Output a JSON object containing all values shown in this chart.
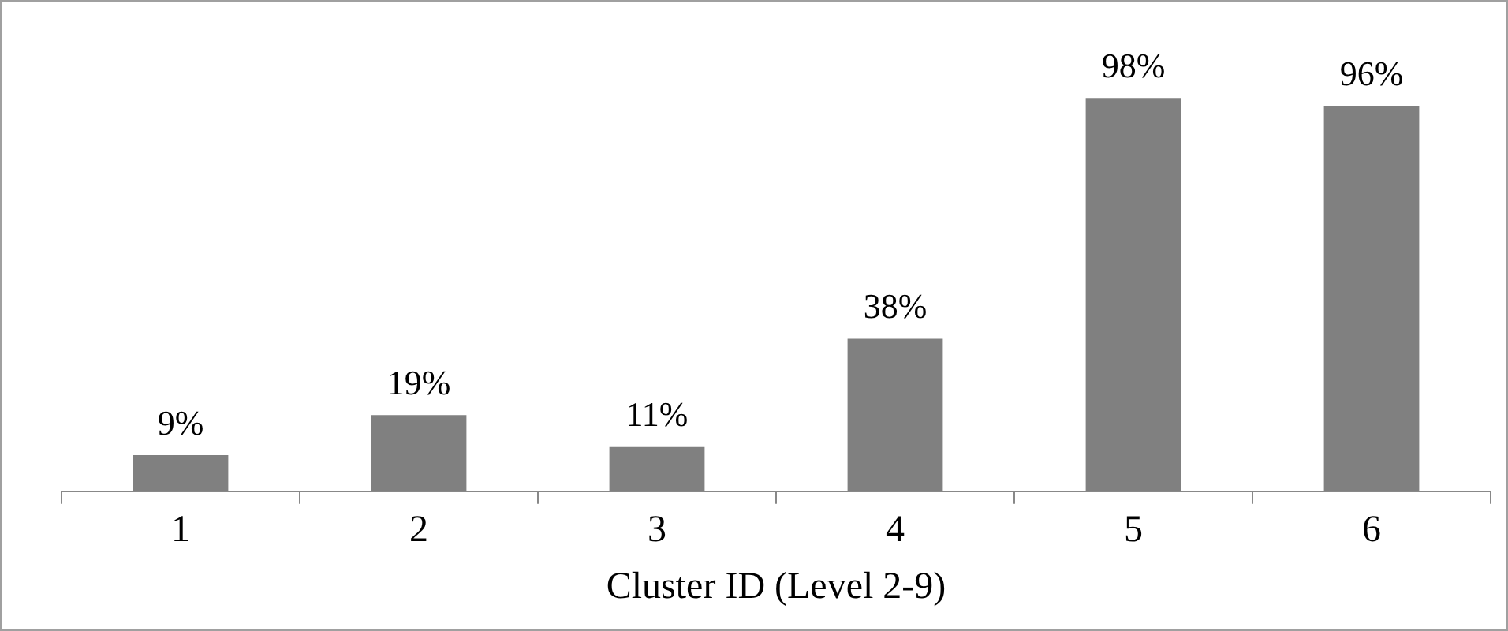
{
  "chart_data": {
    "type": "bar",
    "xlabel": "Cluster ID (Level 2-9)",
    "categories": [
      "1",
      "2",
      "3",
      "4",
      "5",
      "6"
    ],
    "values": [
      9,
      19,
      11,
      38,
      98,
      96
    ],
    "value_labels": [
      "9%",
      "19%",
      "11%",
      "38%",
      "98%",
      "96%"
    ],
    "color": "#808080",
    "grid": false,
    "legend": false,
    "tick_labels": "x"
  }
}
